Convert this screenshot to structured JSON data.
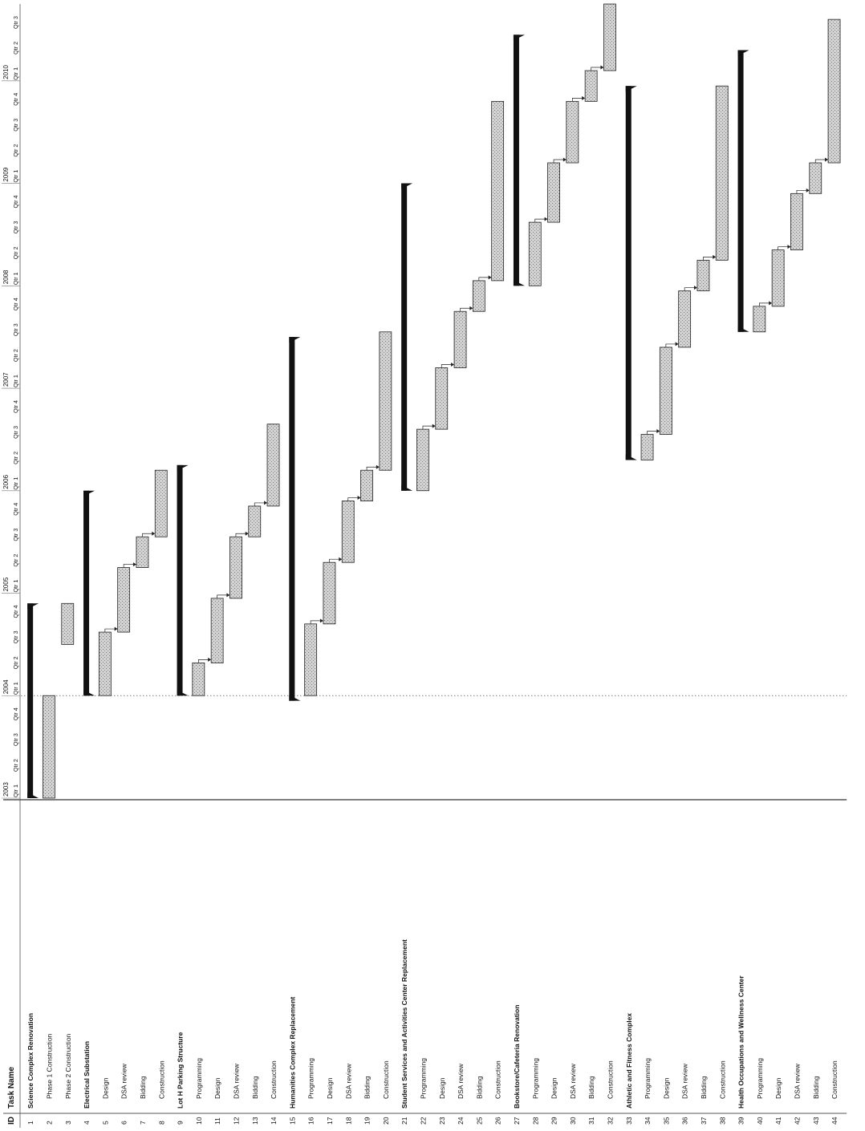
{
  "header": {
    "id_label": "ID",
    "task_label": "Task Name"
  },
  "chart_data": {
    "type": "gantt",
    "years": [
      "2003",
      "2004",
      "2005",
      "2006",
      "2007",
      "2008",
      "2009",
      "2010"
    ],
    "quarter_labels": [
      "Qtr 1",
      "Qtr 2",
      "Qtr 3",
      "Qtr 4"
    ],
    "timeline_start": 2003.0,
    "timeline_end": 2010.75,
    "today_marker": 2004.0,
    "tasks": [
      {
        "id": "1",
        "name": "Science Complex Renovation",
        "summary": true,
        "start": 2003.0,
        "end": 2004.9
      },
      {
        "id": "2",
        "name": "Phase 1 Construction",
        "summary": false,
        "start": 2003.0,
        "end": 2004.0
      },
      {
        "id": "3",
        "name": "Phase 2 Construction",
        "summary": false,
        "start": 2004.5,
        "end": 2004.9
      },
      {
        "id": "4",
        "name": "Electrical Substation",
        "summary": true,
        "start": 2004.0,
        "end": 2006.0
      },
      {
        "id": "5",
        "name": "Design",
        "summary": false,
        "start": 2004.0,
        "end": 2004.62
      },
      {
        "id": "6",
        "name": "DSA review",
        "summary": false,
        "start": 2004.62,
        "end": 2005.25
      },
      {
        "id": "7",
        "name": "Bidding",
        "summary": false,
        "start": 2005.25,
        "end": 2005.55
      },
      {
        "id": "8",
        "name": "Construction",
        "summary": false,
        "start": 2005.55,
        "end": 2006.2
      },
      {
        "id": "9",
        "name": "Lot H Parking Structure",
        "summary": true,
        "start": 2004.0,
        "end": 2006.25
      },
      {
        "id": "10",
        "name": "Programming",
        "summary": false,
        "start": 2004.0,
        "end": 2004.32
      },
      {
        "id": "11",
        "name": "Design",
        "summary": false,
        "start": 2004.32,
        "end": 2004.95
      },
      {
        "id": "12",
        "name": "DSA review",
        "summary": false,
        "start": 2004.95,
        "end": 2005.55
      },
      {
        "id": "13",
        "name": "Bidding",
        "summary": false,
        "start": 2005.55,
        "end": 2005.85
      },
      {
        "id": "14",
        "name": "Construction",
        "summary": false,
        "start": 2005.85,
        "end": 2006.65
      },
      {
        "id": "15",
        "name": "Humanities Complex Replacement",
        "summary": true,
        "start": 2003.95,
        "end": 2007.5
      },
      {
        "id": "16",
        "name": "Programming",
        "summary": false,
        "start": 2004.0,
        "end": 2004.7
      },
      {
        "id": "17",
        "name": "Design",
        "summary": false,
        "start": 2004.7,
        "end": 2005.3
      },
      {
        "id": "18",
        "name": "DSA review",
        "summary": false,
        "start": 2005.3,
        "end": 2005.9
      },
      {
        "id": "19",
        "name": "Bidding",
        "summary": false,
        "start": 2005.9,
        "end": 2006.2
      },
      {
        "id": "20",
        "name": "Construction",
        "summary": false,
        "start": 2006.2,
        "end": 2007.55
      },
      {
        "id": "21",
        "name": "Student Services and Activities Center Replacement",
        "summary": true,
        "start": 2006.0,
        "end": 2009.0
      },
      {
        "id": "22",
        "name": "Programming",
        "summary": false,
        "start": 2006.0,
        "end": 2006.6
      },
      {
        "id": "23",
        "name": "Design",
        "summary": false,
        "start": 2006.6,
        "end": 2007.2
      },
      {
        "id": "24",
        "name": "DSA review",
        "summary": false,
        "start": 2007.2,
        "end": 2007.75
      },
      {
        "id": "25",
        "name": "Bidding",
        "summary": false,
        "start": 2007.75,
        "end": 2008.05
      },
      {
        "id": "26",
        "name": "Construction",
        "summary": false,
        "start": 2008.05,
        "end": 2009.8
      },
      {
        "id": "27",
        "name": "Bookstore/Cafeteria Renovation",
        "summary": true,
        "start": 2008.0,
        "end": 2010.45
      },
      {
        "id": "28",
        "name": "Programming",
        "summary": false,
        "start": 2008.0,
        "end": 2008.62
      },
      {
        "id": "29",
        "name": "Design",
        "summary": false,
        "start": 2008.62,
        "end": 2009.2
      },
      {
        "id": "30",
        "name": "DSA review",
        "summary": false,
        "start": 2009.2,
        "end": 2009.8
      },
      {
        "id": "31",
        "name": "Bidding",
        "summary": false,
        "start": 2009.8,
        "end": 2010.1
      },
      {
        "id": "32",
        "name": "Construction",
        "summary": false,
        "start": 2010.1,
        "end": 2010.75
      },
      {
        "id": "33",
        "name": "Athletic and Fitness Complex",
        "summary": true,
        "start": 2006.3,
        "end": 2009.95
      },
      {
        "id": "34",
        "name": "Programming",
        "summary": false,
        "start": 2006.3,
        "end": 2006.55
      },
      {
        "id": "35",
        "name": "Design",
        "summary": false,
        "start": 2006.55,
        "end": 2007.4
      },
      {
        "id": "36",
        "name": "DSA review",
        "summary": false,
        "start": 2007.4,
        "end": 2007.95
      },
      {
        "id": "37",
        "name": "Bidding",
        "summary": false,
        "start": 2007.95,
        "end": 2008.25
      },
      {
        "id": "38",
        "name": "Construction",
        "summary": false,
        "start": 2008.25,
        "end": 2009.95
      },
      {
        "id": "39",
        "name": "Health Occupations and Wellness Center",
        "summary": true,
        "start": 2007.55,
        "end": 2010.3
      },
      {
        "id": "40",
        "name": "Programming",
        "summary": false,
        "start": 2007.55,
        "end": 2007.8
      },
      {
        "id": "41",
        "name": "Design",
        "summary": false,
        "start": 2007.8,
        "end": 2008.35
      },
      {
        "id": "42",
        "name": "DSA review",
        "summary": false,
        "start": 2008.35,
        "end": 2008.9
      },
      {
        "id": "43",
        "name": "Bidding",
        "summary": false,
        "start": 2008.9,
        "end": 2009.2
      },
      {
        "id": "44",
        "name": "Construction",
        "summary": false,
        "start": 2009.2,
        "end": 2010.6
      }
    ]
  }
}
